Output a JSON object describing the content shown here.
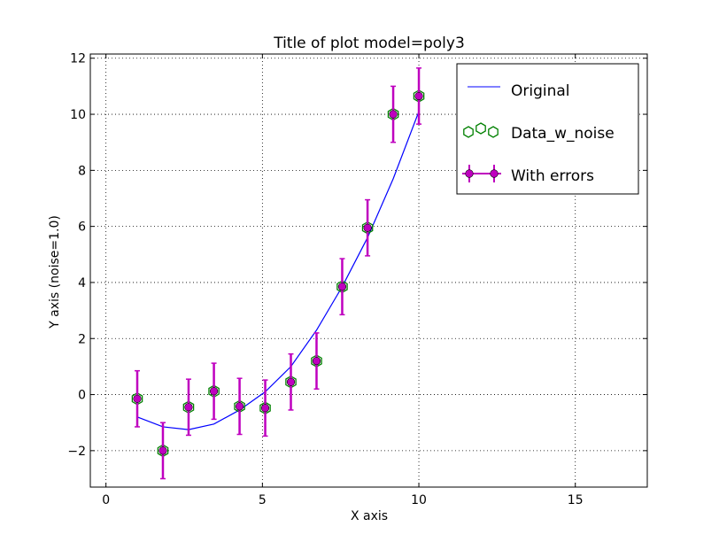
{
  "chart_data": {
    "type": "scatter",
    "title": "Title of plot  model=poly3",
    "xlabel": "X axis",
    "ylabel": "Y axis (noise=1.0)",
    "xlim": [
      -0.5,
      17.3
    ],
    "ylim": [
      -3.3,
      12.15
    ],
    "x_ticks": [
      0,
      5,
      10,
      15
    ],
    "x_tick_labels": [
      "0",
      "5",
      "10",
      "15"
    ],
    "y_ticks": [
      -2,
      0,
      2,
      4,
      6,
      8,
      10,
      12
    ],
    "y_tick_labels": [
      "−2",
      "0",
      "2",
      "4",
      "6",
      "8",
      "10",
      "12"
    ],
    "grid": true,
    "legend_position": "top-right",
    "series": [
      {
        "name": "Original",
        "kind": "line",
        "color": "#0000ff",
        "x": [
          1.0,
          1.82,
          2.64,
          3.45,
          4.27,
          5.09,
          5.91,
          6.73,
          7.55,
          8.36,
          9.18,
          10.0
        ],
        "y": [
          -0.8,
          -1.15,
          -1.25,
          -1.05,
          -0.55,
          0.1,
          1.0,
          2.3,
          3.85,
          5.6,
          7.7,
          10.1
        ]
      },
      {
        "name": "Data_w_noise",
        "kind": "markers",
        "marker": "hexagon",
        "color": "#008000",
        "x": [
          1.0,
          1.82,
          2.64,
          3.45,
          4.27,
          5.09,
          5.91,
          6.73,
          7.55,
          8.36,
          9.18,
          10.0
        ],
        "y": [
          -0.15,
          -2.0,
          -0.45,
          0.12,
          -0.42,
          -0.48,
          0.45,
          1.2,
          3.85,
          5.95,
          10.0,
          10.65
        ]
      },
      {
        "name": "With errors",
        "kind": "errorbar",
        "color": "#bf00bf",
        "x": [
          1.0,
          1.82,
          2.64,
          3.45,
          4.27,
          5.09,
          5.91,
          6.73,
          7.55,
          8.36,
          9.18,
          10.0
        ],
        "y": [
          -0.15,
          -2.0,
          -0.45,
          0.12,
          -0.42,
          -0.48,
          0.45,
          1.2,
          3.85,
          5.95,
          10.0,
          10.65
        ],
        "yerr": 1.0
      }
    ]
  }
}
